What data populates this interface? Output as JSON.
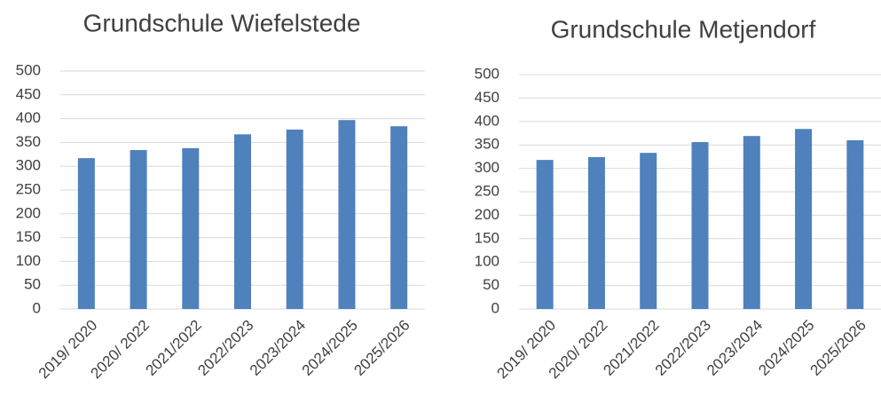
{
  "chart_data": [
    {
      "type": "bar",
      "title": "Grundschule Wiefelstede",
      "categories": [
        "2019/ 2020",
        "2020/ 2022",
        "2021/2022",
        "2022/2023",
        "2023/2024",
        "2024/2025",
        "2025/2026"
      ],
      "values": [
        317,
        334,
        338,
        367,
        377,
        397,
        384
      ],
      "color": "#4f81bd",
      "ylim": [
        0,
        500
      ],
      "yticks": [
        0,
        50,
        100,
        150,
        200,
        250,
        300,
        350,
        400,
        450,
        500
      ],
      "grid": true
    },
    {
      "type": "bar",
      "title": "Grundschule Metjendorf",
      "categories": [
        "2019/ 2020",
        "2020/ 2022",
        "2021/2022",
        "2022/2023",
        "2023/2024",
        "2024/2025",
        "2025/2026"
      ],
      "values": [
        318,
        324,
        333,
        356,
        369,
        384,
        360
      ],
      "color": "#4f81bd",
      "ylim": [
        0,
        500
      ],
      "yticks": [
        0,
        50,
        100,
        150,
        200,
        250,
        300,
        350,
        400,
        450,
        500
      ],
      "grid": true
    }
  ]
}
